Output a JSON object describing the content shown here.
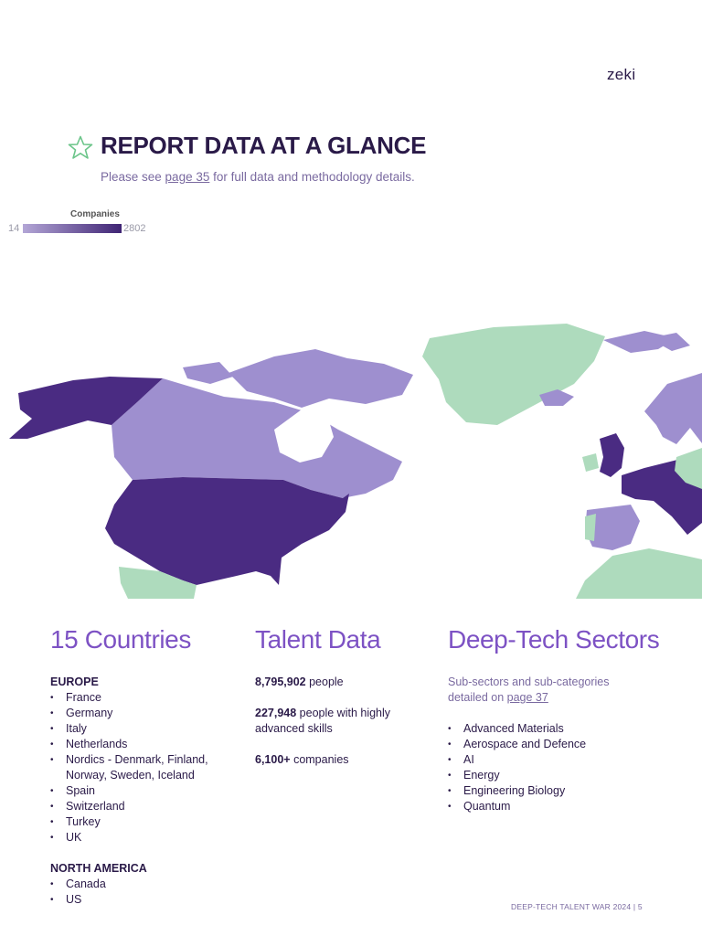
{
  "header": {
    "logo": "zeki"
  },
  "page": {
    "title": "REPORT DATA AT A GLANCE",
    "subtitle_before": "Please see ",
    "subtitle_link": "page 35",
    "subtitle_after": " for full data and methodology details."
  },
  "legend": {
    "title": "Companies",
    "min": "14",
    "max": "2802"
  },
  "colors": {
    "accent": "#7d52c4",
    "dark_navy": "#2a1a48",
    "high": "#4a2b82",
    "low": "#9e8fcf",
    "not_covered": "#aedbbd"
  },
  "countries": {
    "heading": "15 Countries",
    "europe_label": "EUROPE",
    "europe": [
      "France",
      "Germany",
      "Italy",
      "Netherlands",
      "Nordics - Denmark, Finland, Norway, Sweden, Iceland",
      "Spain",
      "Switzerland",
      "Turkey",
      "UK"
    ],
    "na_label": "NORTH AMERICA",
    "north_america": [
      "Canada",
      "US"
    ]
  },
  "talent": {
    "heading": "Talent Data",
    "stats": [
      {
        "value": "8,795,902",
        "text": " people"
      },
      {
        "value": "227,948",
        "text": " people with highly advanced skills"
      },
      {
        "value": "6,100+",
        "text": " companies"
      }
    ]
  },
  "sectors": {
    "heading": "Deep-Tech Sectors",
    "note_before": "Sub-sectors and sub-categories detailed on ",
    "note_link": "page 37",
    "items": [
      "Advanced Materials",
      "Aerospace and Defence",
      "AI",
      "Energy",
      "Engineering Biology",
      "Quantum"
    ]
  },
  "footer": {
    "text": "DEEP-TECH TALENT WAR 2024",
    "separator": " | ",
    "page_number": "5"
  }
}
